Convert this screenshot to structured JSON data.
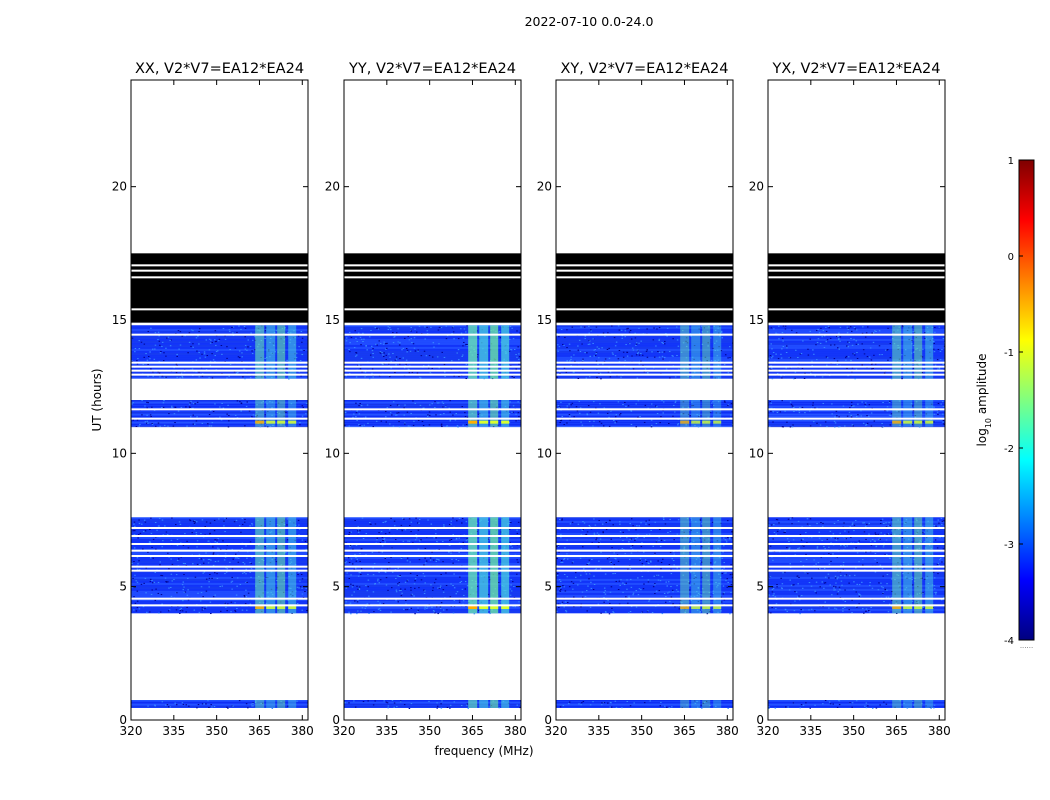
{
  "chart_data": {
    "type": "heatmap",
    "suptitle": "2022-07-10 0.0-24.0",
    "xlabel": "frequency (MHz)",
    "ylabel": "UT (hours)",
    "xlim": [
      320,
      382
    ],
    "ylim": [
      0,
      24
    ],
    "x_ticks": [
      320,
      335,
      350,
      365,
      380
    ],
    "y_ticks": [
      0,
      5,
      10,
      15,
      20
    ],
    "panels": [
      {
        "title": "XX, V2*V7=EA12*EA24",
        "hot_from": 363.5,
        "intensity": 0.55
      },
      {
        "title": "YY, V2*V7=EA12*EA24",
        "hot_from": 363.5,
        "intensity": 0.75
      },
      {
        "title": "XY, V2*V7=EA12*EA24",
        "hot_from": 363.5,
        "intensity": 0.45
      },
      {
        "title": "YX, V2*V7=EA12*EA24",
        "hot_from": 363.5,
        "intensity": 0.5
      }
    ],
    "masked_band": {
      "from": 14.9,
      "to": 17.5,
      "fill": "#000000"
    },
    "data_bands": [
      {
        "from": 0.45,
        "to": 0.75
      },
      {
        "from": 4.0,
        "to": 7.6
      },
      {
        "from": 11.0,
        "to": 12.0
      },
      {
        "from": 12.8,
        "to": 14.8
      }
    ],
    "gap_lines": [
      4.3,
      4.55,
      5.6,
      5.75,
      6.15,
      6.35,
      6.6,
      6.9,
      7.2,
      11.3,
      11.65,
      12.95,
      13.1,
      13.25,
      13.4,
      14.45,
      15.4,
      16.6,
      16.85,
      17.05
    ],
    "colorbar": {
      "label_prefix": "log",
      "label_sub": "10",
      "label_suffix": " amplitude",
      "min": -4,
      "max": 1,
      "ticks": [
        1,
        0,
        -1,
        -2,
        -3,
        -4
      ],
      "bottom_note": "......",
      "colors": [
        "#00007f",
        "#0000ff",
        "#0080ff",
        "#00ffff",
        "#80ff80",
        "#ffff00",
        "#ff8000",
        "#ff0000",
        "#7f0000"
      ]
    }
  }
}
